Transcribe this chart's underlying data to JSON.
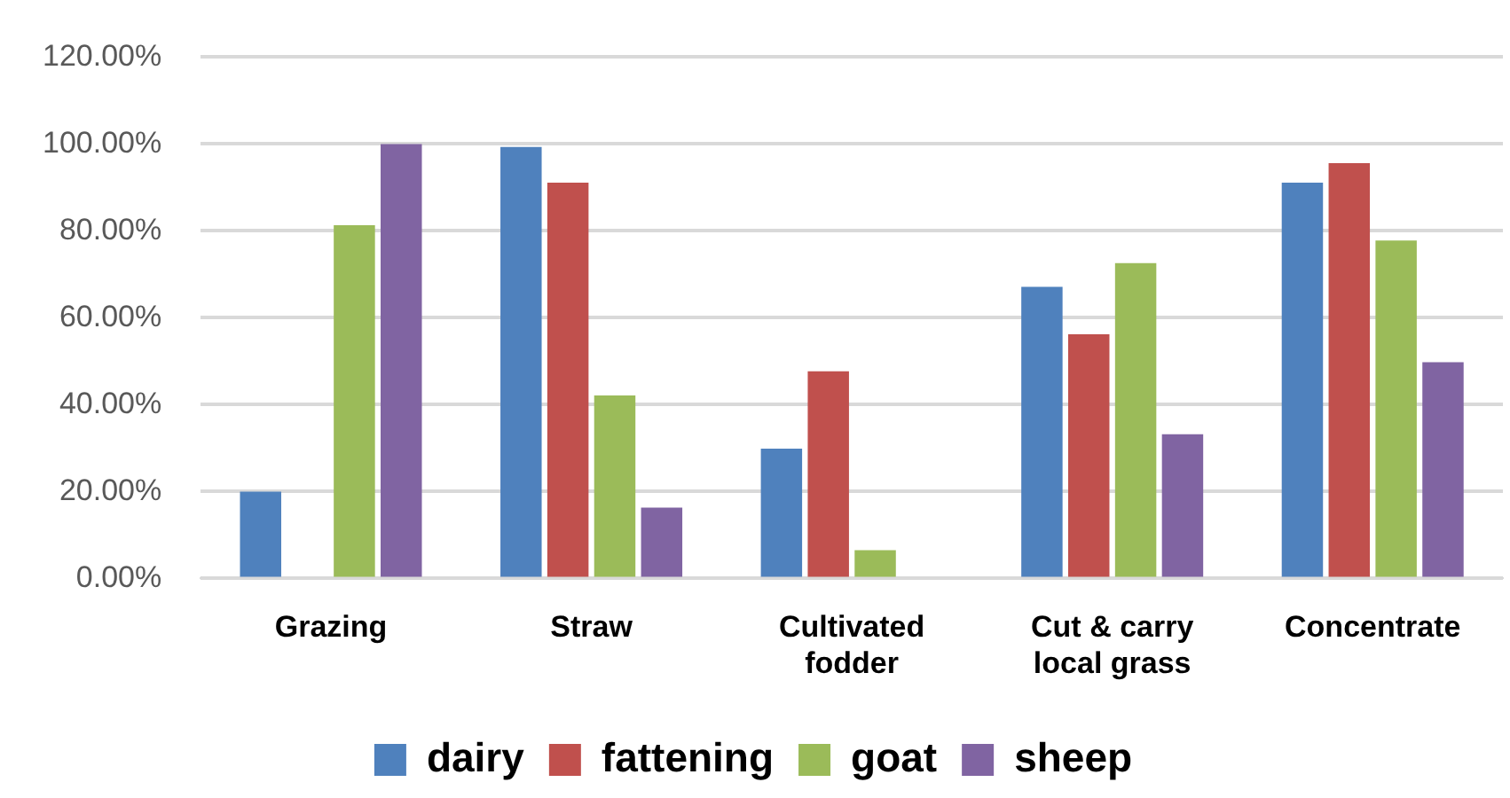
{
  "chart_data": {
    "type": "bar",
    "categories": [
      "Grazing",
      "Straw",
      "Cultivated fodder",
      "Cut & carry local grass",
      "Concentrate"
    ],
    "series": [
      {
        "name": "dairy",
        "color": "#4f81bd",
        "values": [
          20,
          99.3,
          29.9,
          67.1,
          91.1
        ]
      },
      {
        "name": "fattening",
        "color": "#c0504d",
        "values": [
          0,
          91.1,
          47.7,
          56.2,
          95.6
        ]
      },
      {
        "name": "goat",
        "color": "#9bbb59",
        "values": [
          81.3,
          42.1,
          6.5,
          72.6,
          77.8
        ]
      },
      {
        "name": "sheep",
        "color": "#8064a2",
        "values": [
          100,
          16.3,
          0,
          33.2,
          49.8
        ]
      }
    ],
    "ylim": [
      0,
      120
    ],
    "yticks": [
      {
        "value": 0,
        "label": "0.00%"
      },
      {
        "value": 20,
        "label": "20.00%"
      },
      {
        "value": 40,
        "label": "40.00%"
      },
      {
        "value": 60,
        "label": "60.00%"
      },
      {
        "value": 80,
        "label": "80.00%"
      },
      {
        "value": 100,
        "label": "100.00%"
      },
      {
        "value": 120,
        "label": "120.00%"
      }
    ],
    "grid": "y",
    "legend": "bottom"
  }
}
